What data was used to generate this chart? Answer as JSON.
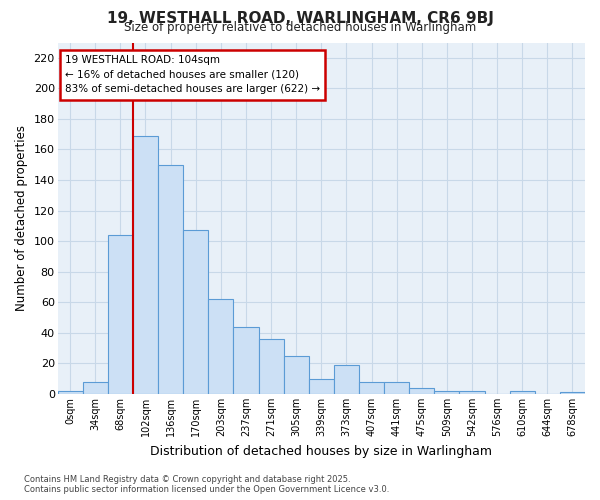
{
  "title": "19, WESTHALL ROAD, WARLINGHAM, CR6 9BJ",
  "subtitle": "Size of property relative to detached houses in Warlingham",
  "xlabel": "Distribution of detached houses by size in Warlingham",
  "ylabel": "Number of detached properties",
  "bin_labels": [
    "0sqm",
    "34sqm",
    "68sqm",
    "102sqm",
    "136sqm",
    "170sqm",
    "203sqm",
    "237sqm",
    "271sqm",
    "305sqm",
    "339sqm",
    "373sqm",
    "407sqm",
    "441sqm",
    "475sqm",
    "509sqm",
    "542sqm",
    "576sqm",
    "610sqm",
    "644sqm",
    "678sqm"
  ],
  "bar_values": [
    2,
    8,
    104,
    169,
    150,
    107,
    62,
    44,
    36,
    25,
    10,
    19,
    8,
    8,
    4,
    2,
    2,
    0,
    2,
    0,
    1
  ],
  "bar_color": "#cce0f5",
  "bar_edge_color": "#5b9bd5",
  "property_line_x": 3,
  "property_line_label": "19 WESTHALL ROAD: 104sqm",
  "annotation_line1": "← 16% of detached houses are smaller (120)",
  "annotation_line2": "83% of semi-detached houses are larger (622) →",
  "annotation_box_facecolor": "#ffffff",
  "annotation_box_edgecolor": "#cc0000",
  "vline_color": "#cc0000",
  "axes_facecolor": "#e8f0f8",
  "figure_facecolor": "#ffffff",
  "grid_color": "#c8d8e8",
  "ylim": [
    0,
    230
  ],
  "yticks": [
    0,
    20,
    40,
    60,
    80,
    100,
    120,
    140,
    160,
    180,
    200,
    220
  ],
  "footer_line1": "Contains HM Land Registry data © Crown copyright and database right 2025.",
  "footer_line2": "Contains public sector information licensed under the Open Government Licence v3.0."
}
